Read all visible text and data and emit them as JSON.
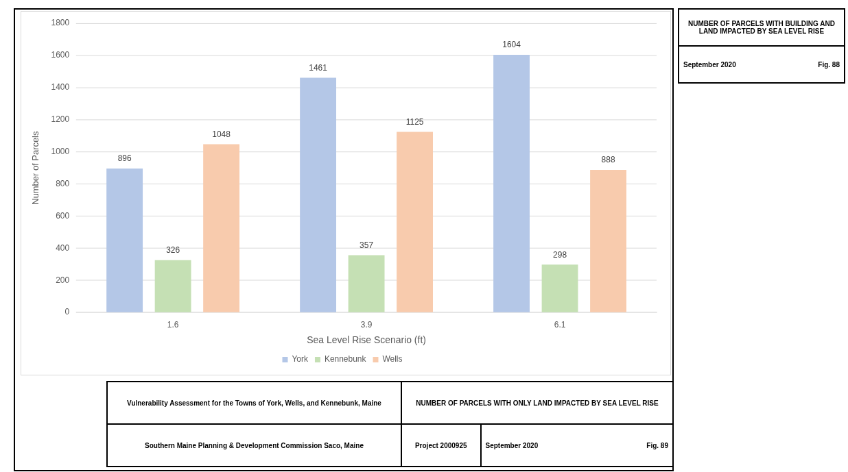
{
  "chart_data": {
    "type": "bar",
    "xlabel": "Sea Level Rise Scenario (ft)",
    "ylabel": "Number of Parcels",
    "categories": [
      "1.6",
      "3.9",
      "6.1"
    ],
    "series": [
      {
        "name": "York",
        "color": "#b4c7e7",
        "values": [
          896,
          1461,
          1604
        ]
      },
      {
        "name": "Kennebunk",
        "color": "#c5e0b4",
        "values": [
          326,
          357,
          298
        ]
      },
      {
        "name": "Wells",
        "color": "#f8cbad",
        "values": [
          1048,
          1125,
          888
        ]
      }
    ],
    "ylim": [
      0,
      1800
    ],
    "yticks": [
      0,
      200,
      400,
      600,
      800,
      1000,
      1200,
      1400,
      1600,
      1800
    ],
    "grid": "y",
    "legend": "bottom",
    "data_labels": true,
    "annotations": [
      "Vulnerability Assessment for the Towns of York, Wells, and Kennebunk, Maine",
      "NUMBER OF PARCELS WITH ONLY LAND IMPACTED BY SEA LEVEL RISE",
      "Southern Maine Planning & Development Commission Saco, Maine",
      "Project 2000925",
      "September 2020",
      "Fig. 89",
      "NUMBER OF PARCELS WITH BUILDING AND LAND IMPACTED BY SEA LEVEL RISE",
      "September 2020",
      "Fig. 88"
    ]
  }
}
